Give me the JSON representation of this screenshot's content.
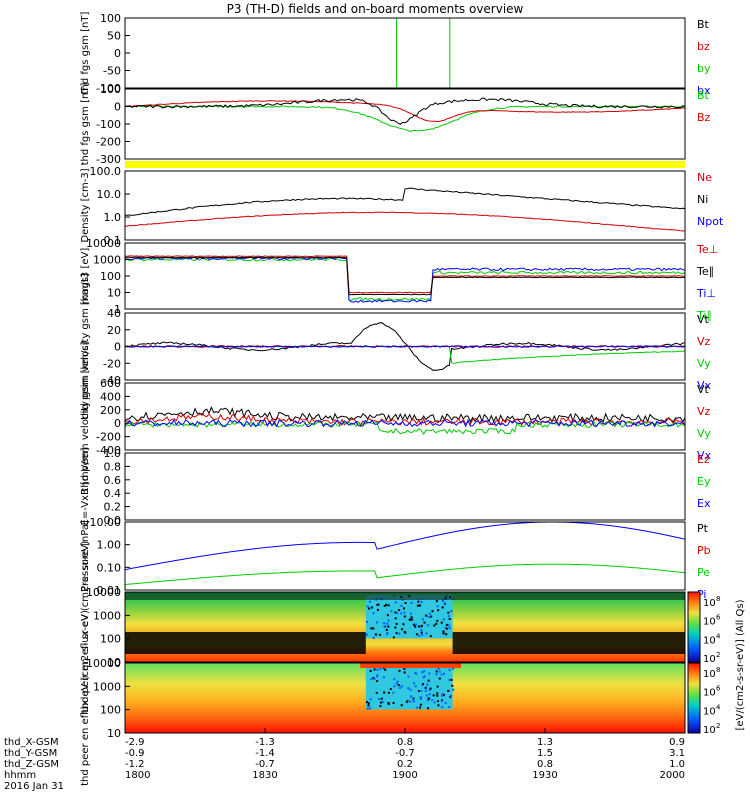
{
  "title": "P3 (TH-D) fields and on-board moments overview",
  "date_label": "2016 Jan 31",
  "chart_data": [
    {
      "type": "line",
      "panel_id": "fgs_high",
      "ylabel": "thd fgs gsm [nT]",
      "ylim": [
        -100,
        100
      ],
      "ticks": [
        "100",
        "50",
        "0",
        "-50",
        "-100"
      ],
      "legend": [
        {
          "name": "Bt",
          "color": "#000000"
        },
        {
          "name": "bz",
          "color": "#d00000"
        },
        {
          "name": "by",
          "color": "#00cc00"
        },
        {
          "name": "bx",
          "color": "#0000ff"
        }
      ]
    },
    {
      "type": "line",
      "panel_id": "fgs_low",
      "ylabel": "thd fgs gsm [nT]",
      "ylim": [
        -300,
        100
      ],
      "ticks": [
        "100",
        "0",
        "-100",
        "-200",
        "-300"
      ],
      "legend": [
        {
          "name": "Bt",
          "color": "#00cc00"
        },
        {
          "name": "Bz",
          "color": "#d00000"
        }
      ]
    },
    {
      "type": "line",
      "panel_id": "density",
      "ylabel": "Density [cm-3]",
      "ticks": [
        "100.0",
        "10.0",
        "1.0",
        "0.1"
      ],
      "legend": [
        {
          "name": "Ne",
          "color": "#d00000"
        },
        {
          "name": "Ni",
          "color": "#000000"
        },
        {
          "name": "Npot",
          "color": "#0000ff"
        }
      ]
    },
    {
      "type": "line",
      "panel_id": "temperature",
      "ylabel": "magt3 [eV]",
      "ticks": [
        "10000",
        "1000",
        "100",
        "10",
        "1"
      ],
      "legend": [
        {
          "name": "Te⊥",
          "color": "#d00000"
        },
        {
          "name": "Te∥",
          "color": "#000000"
        },
        {
          "name": "Ti⊥",
          "color": "#0000ff"
        },
        {
          "name": "Ti∥",
          "color": "#00cc00"
        }
      ]
    },
    {
      "type": "line",
      "panel_id": "peim_velocity",
      "ylabel": "thd peim velocity gsm [km/s]",
      "ylim": [
        -40,
        40
      ],
      "ticks": [
        "40",
        "20",
        "0",
        "-20",
        "-40"
      ],
      "legend": [
        {
          "name": "Vt",
          "color": "#000000"
        },
        {
          "name": "Vz",
          "color": "#d00000"
        },
        {
          "name": "Vy",
          "color": "#00cc00"
        },
        {
          "name": "Vx",
          "color": "#0000ff"
        }
      ]
    },
    {
      "type": "line",
      "panel_id": "peem_velocity",
      "ylabel": "thd peem velocity gsm [km/s]",
      "ylim": [
        -400,
        600
      ],
      "ticks": [
        "600",
        "400",
        "200",
        "0",
        "-200",
        "-400"
      ],
      "legend": [
        {
          "name": "Vt",
          "color": "#000000"
        },
        {
          "name": "Vz",
          "color": "#d00000"
        },
        {
          "name": "Vy",
          "color": "#00cc00"
        },
        {
          "name": "Vx",
          "color": "#0000ff"
        }
      ]
    },
    {
      "type": "line",
      "panel_id": "efield",
      "ylabel": "E=-VxB [mV/m]",
      "ylim": [
        0,
        1
      ],
      "ticks": [
        "1.0",
        "0.8",
        "0.6",
        "0.4",
        "0.2",
        "0.0"
      ],
      "legend": [
        {
          "name": "Ez",
          "color": "#d00000"
        },
        {
          "name": "Ey",
          "color": "#00cc00"
        },
        {
          "name": "Ex",
          "color": "#0000ff"
        }
      ]
    },
    {
      "type": "line",
      "panel_id": "pressure",
      "ylabel": "Pressure [nPa]",
      "ticks": [
        "10.00",
        "1.00",
        "0.10",
        "0.01"
      ],
      "legend": [
        {
          "name": "Pt",
          "color": "#000000"
        },
        {
          "name": "Pb",
          "color": "#d00000"
        },
        {
          "name": "Pe",
          "color": "#00cc00"
        },
        {
          "name": "Pi",
          "color": "#0000ff"
        }
      ]
    },
    {
      "type": "heatmap",
      "panel_id": "peir_spec",
      "ylabel": "thd peir en eflux eV (cm2-s- sr-eV)",
      "ticks": [
        "10000",
        "1000",
        "100",
        "10"
      ]
    },
    {
      "type": "heatmap",
      "panel_id": "peer_spec",
      "ylabel": "thd peer en eflux eV (cm2-s- sr-eV)",
      "ticks": [
        "10000",
        "1000",
        "100",
        "10"
      ]
    }
  ],
  "colorbar": {
    "label": "[eV/(cm2-s-sr-eV)] (All Qs)",
    "ticks": [
      "10",
      "10",
      "10",
      "10",
      "10",
      "10",
      "10",
      "10"
    ],
    "exponents": [
      "8",
      "6",
      "4",
      "2",
      "8",
      "6",
      "4",
      "2"
    ]
  },
  "xaxis": {
    "row_labels": [
      "thd_X-GSM",
      "thd_Y-GSM",
      "thd_Z-GSM",
      "hhmm"
    ],
    "columns": [
      {
        "x": "-2.9",
        "y": "-0.9",
        "z": "-1.2",
        "t": "1800"
      },
      {
        "x": "-1.3",
        "y": "-1.4",
        "z": "-0.7",
        "t": "1830"
      },
      {
        "x": "0.8",
        "y": "-0.7",
        "z": "0.2",
        "t": "1900"
      },
      {
        "x": "1.3",
        "y": "1.5",
        "z": "0.8",
        "t": "1930"
      },
      {
        "x": "0.9",
        "y": "3.1",
        "z": "1.0",
        "t": "2000"
      }
    ]
  }
}
